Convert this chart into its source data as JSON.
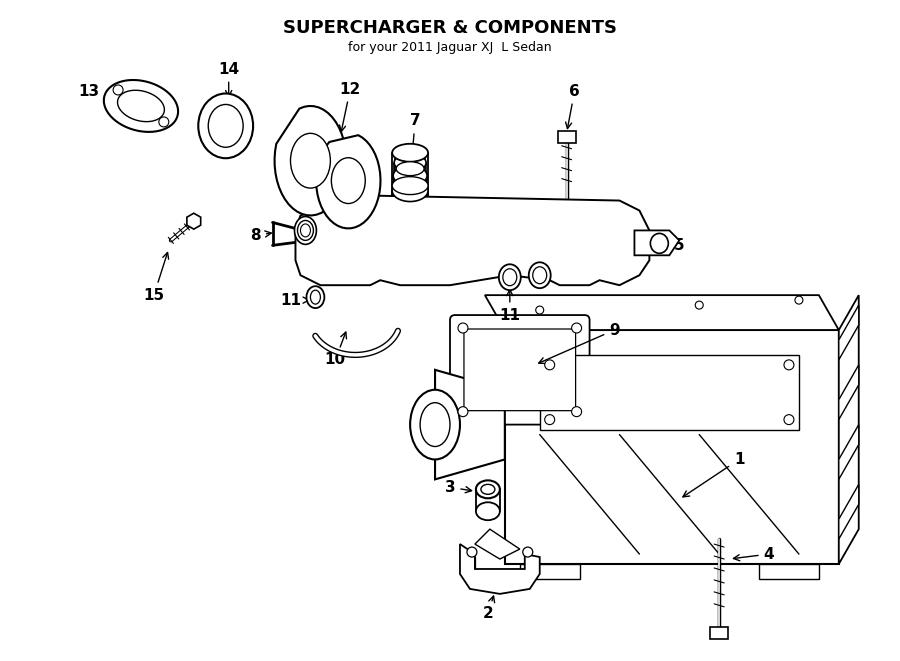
{
  "title": "SUPERCHARGER & COMPONENTS",
  "subtitle": "for your 2011 Jaguar XJ  L Sedan",
  "bg_color": "#ffffff",
  "line_color": "#000000",
  "fig_width": 9.0,
  "fig_height": 6.61,
  "dpi": 100
}
